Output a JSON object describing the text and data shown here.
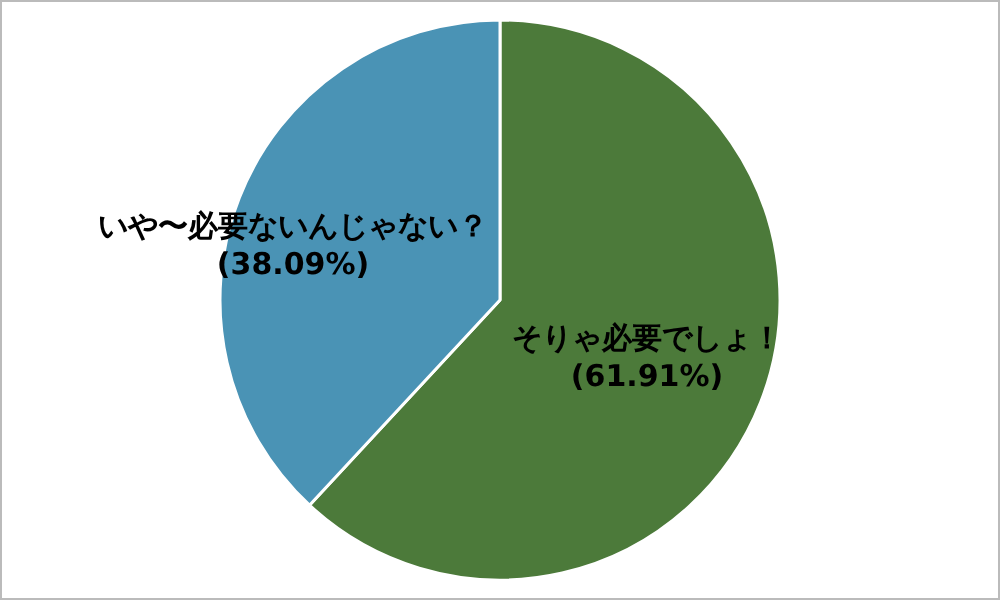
{
  "chart_data": {
    "type": "pie",
    "categories": [
      "そりゃ必要でしょ！",
      "いや〜必要ないんじゃない？"
    ],
    "values": [
      61.91,
      38.09
    ],
    "value_labels": [
      "(61.91%)",
      "(38.09%)"
    ],
    "colors": [
      "#4c7a3a",
      "#4a93b5"
    ]
  }
}
